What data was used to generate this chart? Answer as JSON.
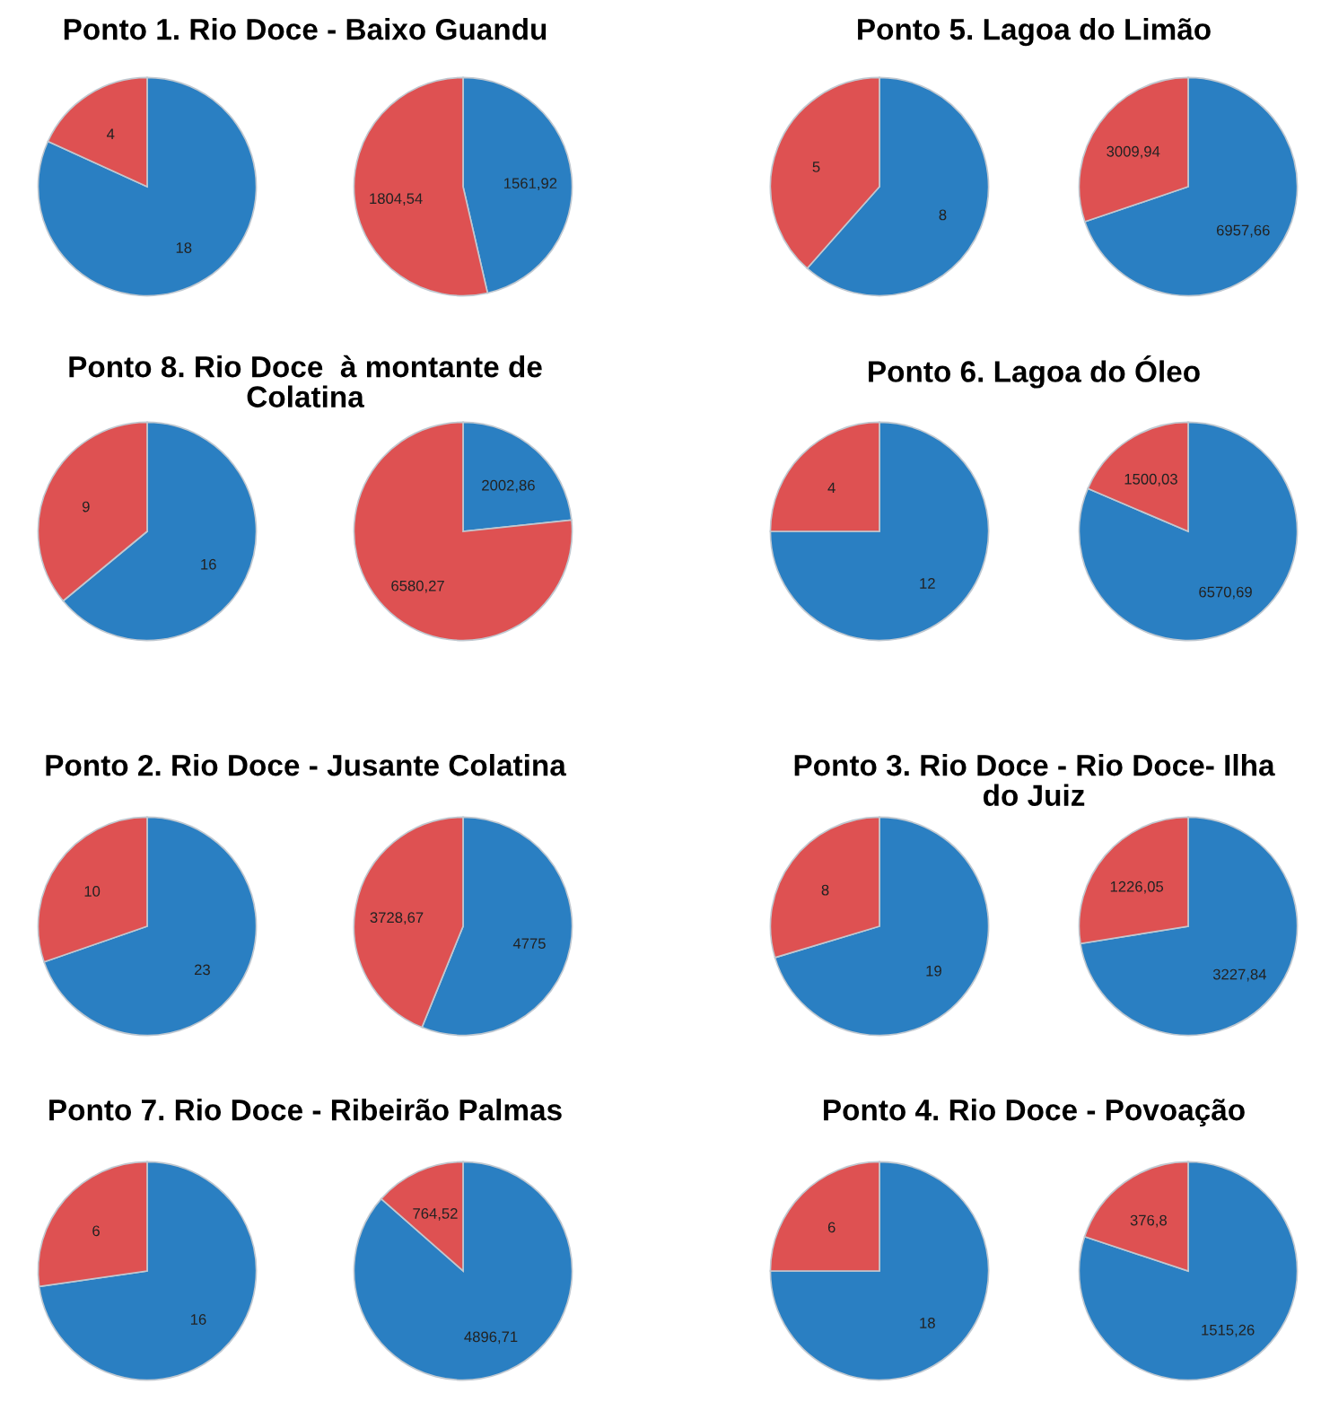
{
  "chart_data": [
    {
      "type": "pie",
      "title": "Ponto 1. Rio Doce - Baixo Guandu",
      "categories": [
        null,
        null
      ],
      "values": [
        18,
        4
      ],
      "colors": [
        "#2a7fc2",
        "#de5152"
      ],
      "value_labels": [
        "18",
        "4"
      ]
    },
    {
      "type": "pie",
      "categories": [
        null,
        null
      ],
      "values": [
        1561.92,
        1804.54
      ],
      "colors": [
        "#2a7fc2",
        "#de5152"
      ],
      "value_labels": [
        "1561,92",
        "1804,54"
      ]
    },
    {
      "type": "pie",
      "title": "Ponto 5. Lagoa do Limão",
      "categories": [
        null,
        null
      ],
      "values": [
        8,
        5
      ],
      "colors": [
        "#2a7fc2",
        "#de5152"
      ],
      "value_labels": [
        "8",
        "5"
      ]
    },
    {
      "type": "pie",
      "categories": [
        null,
        null
      ],
      "values": [
        6957.66,
        3009.94
      ],
      "colors": [
        "#2a7fc2",
        "#de5152"
      ],
      "value_labels": [
        "6957,66",
        "3009,94"
      ]
    },
    {
      "type": "pie",
      "title": "Ponto 8. Rio Doce  à montante de\nColatina",
      "categories": [
        null,
        null
      ],
      "values": [
        16,
        9
      ],
      "colors": [
        "#2a7fc2",
        "#de5152"
      ],
      "value_labels": [
        "16",
        "9"
      ]
    },
    {
      "type": "pie",
      "categories": [
        null,
        null
      ],
      "values": [
        2002.86,
        6580.27
      ],
      "colors": [
        "#2a7fc2",
        "#de5152"
      ],
      "value_labels": [
        "2002,86",
        "6580,27"
      ]
    },
    {
      "type": "pie",
      "title": "Ponto 6. Lagoa do Óleo",
      "categories": [
        null,
        null
      ],
      "values": [
        12,
        4
      ],
      "colors": [
        "#2a7fc2",
        "#de5152"
      ],
      "value_labels": [
        "12",
        "4"
      ]
    },
    {
      "type": "pie",
      "categories": [
        null,
        null
      ],
      "values": [
        6570.69,
        1500.03
      ],
      "colors": [
        "#2a7fc2",
        "#de5152"
      ],
      "value_labels": [
        "6570,69",
        "1500,03"
      ]
    },
    {
      "type": "pie",
      "title": "Ponto 2. Rio Doce - Jusante Colatina",
      "categories": [
        null,
        null
      ],
      "values": [
        23,
        10
      ],
      "colors": [
        "#2a7fc2",
        "#de5152"
      ],
      "value_labels": [
        "23",
        "10"
      ]
    },
    {
      "type": "pie",
      "categories": [
        null,
        null
      ],
      "values": [
        4775,
        3728.67
      ],
      "colors": [
        "#2a7fc2",
        "#de5152"
      ],
      "value_labels": [
        "4775",
        "3728,67"
      ]
    },
    {
      "type": "pie",
      "title": "Ponto 3. Rio Doce - Rio Doce- Ilha\ndo Juiz",
      "categories": [
        null,
        null
      ],
      "values": [
        19,
        8
      ],
      "colors": [
        "#2a7fc2",
        "#de5152"
      ],
      "value_labels": [
        "19",
        "8"
      ]
    },
    {
      "type": "pie",
      "categories": [
        null,
        null
      ],
      "values": [
        3227.84,
        1226.05
      ],
      "colors": [
        "#2a7fc2",
        "#de5152"
      ],
      "value_labels": [
        "3227,84",
        "1226,05"
      ]
    },
    {
      "type": "pie",
      "title": "Ponto 7. Rio Doce - Ribeirão Palmas",
      "categories": [
        null,
        null
      ],
      "values": [
        16,
        6
      ],
      "colors": [
        "#2a7fc2",
        "#de5152"
      ],
      "value_labels": [
        "16",
        "6"
      ]
    },
    {
      "type": "pie",
      "categories": [
        null,
        null
      ],
      "values": [
        4896.71,
        764.52
      ],
      "colors": [
        "#2a7fc2",
        "#de5152"
      ],
      "value_labels": [
        "4896,71",
        "764,52"
      ]
    },
    {
      "type": "pie",
      "title": "Ponto 4. Rio Doce - Povoação",
      "categories": [
        null,
        null
      ],
      "values": [
        18,
        6
      ],
      "colors": [
        "#2a7fc2",
        "#de5152"
      ],
      "value_labels": [
        "18",
        "6"
      ]
    },
    {
      "type": "pie",
      "categories": [
        null,
        null
      ],
      "values": [
        1515.26,
        376.8
      ],
      "colors": [
        "#2a7fc2",
        "#de5152"
      ],
      "value_labels": [
        "1515,26",
        "376,8"
      ]
    }
  ]
}
